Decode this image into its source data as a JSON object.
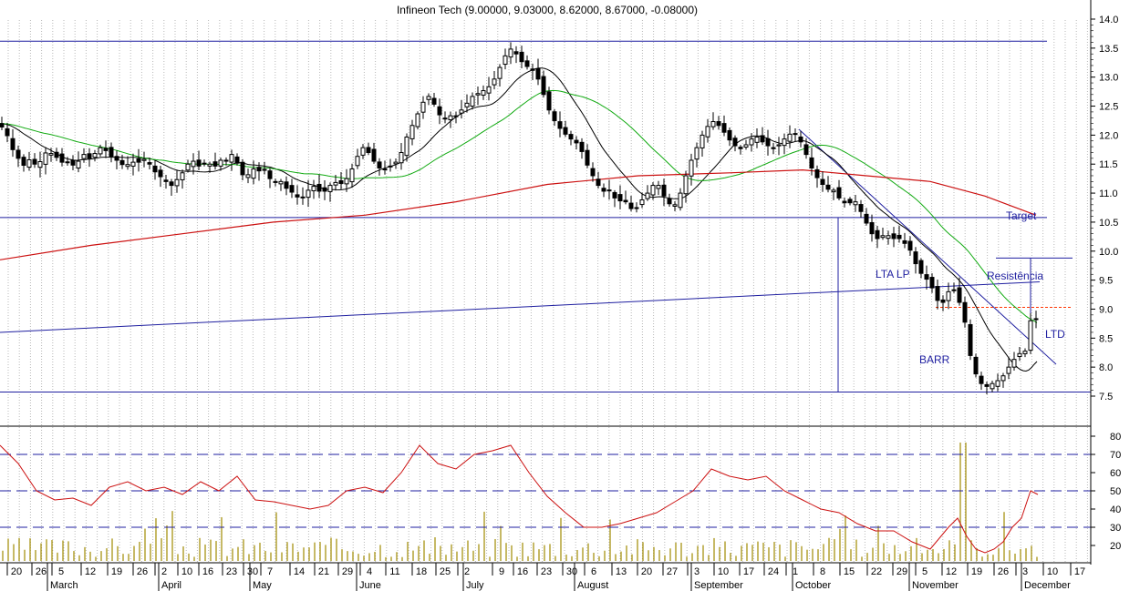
{
  "title": "Infineon Tech (9.00000, 9.03000, 8.62000, 8.67000, -0.08000)",
  "colors": {
    "candle": "#000000",
    "ma_short": "#000000",
    "ma_mid": "#11aa11",
    "ma_long": "#cc1111",
    "lines": "#1f1fa0",
    "resistance": "#ff3300",
    "rsi": "#cc1111",
    "volume": "#a08a00",
    "grid": "#b8b8b8"
  },
  "annotations": {
    "target": "Target",
    "resistencia": "Resistência",
    "lta_lp": "LTA LP",
    "ltd": "LTD",
    "barr": "BARR"
  },
  "x_axis": {
    "day_ticks": [
      "20",
      "26",
      "5",
      "12",
      "19",
      "26",
      "2",
      "10",
      "16",
      "23",
      "30",
      "7",
      "14",
      "21",
      "29",
      "4",
      "11",
      "18",
      "25",
      "2",
      "9",
      "16",
      "23",
      "30",
      "6",
      "13",
      "20",
      "27",
      "3",
      "10",
      "17",
      "24",
      "1",
      "8",
      "15",
      "22",
      "29",
      "5",
      "12",
      "19",
      "26",
      "3",
      "10",
      "17"
    ],
    "months": [
      "March",
      "April",
      "May",
      "June",
      "July",
      "August",
      "September",
      "October",
      "November",
      "December"
    ]
  },
  "chart_data": [
    {
      "type": "candlestick",
      "title": "Infineon Tech (9.00000, 9.03000, 8.62000, 8.67000, -0.08000)",
      "last_bar": {
        "open": 9.0,
        "high": 9.03,
        "low": 8.62,
        "close": 8.67,
        "change": -0.08
      },
      "ylim": [
        7.3,
        14.3
      ],
      "yticks": [
        "14.0",
        "13.5",
        "13.0",
        "12.5",
        "12.0",
        "11.5",
        "11.0",
        "10.5",
        "10.0",
        "9.5",
        "9.0",
        "8.5",
        "8.0",
        "7.5"
      ],
      "grid": "vertical dotted",
      "close_path": [
        [
          0,
          12.2
        ],
        [
          5,
          12.05
        ],
        [
          10,
          11.95
        ],
        [
          15,
          11.7
        ],
        [
          20,
          11.6
        ],
        [
          25,
          11.45
        ],
        [
          30,
          11.6
        ],
        [
          38,
          11.5
        ],
        [
          45,
          11.55
        ],
        [
          52,
          11.75
        ],
        [
          58,
          11.65
        ],
        [
          64,
          11.6
        ],
        [
          70,
          11.5
        ],
        [
          76,
          11.55
        ],
        [
          82,
          11.45
        ],
        [
          88,
          11.6
        ],
        [
          94,
          11.7
        ],
        [
          100,
          11.55
        ],
        [
          106,
          11.75
        ],
        [
          112,
          11.8
        ],
        [
          118,
          11.7
        ],
        [
          124,
          11.6
        ],
        [
          130,
          11.55
        ],
        [
          137,
          11.45
        ],
        [
          144,
          11.55
        ],
        [
          150,
          11.5
        ],
        [
          156,
          11.6
        ],
        [
          162,
          11.55
        ],
        [
          168,
          11.4
        ],
        [
          174,
          11.3
        ],
        [
          180,
          11.25
        ],
        [
          186,
          11.1
        ],
        [
          192,
          11.2
        ],
        [
          198,
          11.3
        ],
        [
          204,
          11.45
        ],
        [
          210,
          11.6
        ],
        [
          216,
          11.45
        ],
        [
          222,
          11.5
        ],
        [
          228,
          11.55
        ],
        [
          234,
          11.4
        ],
        [
          240,
          11.6
        ],
        [
          246,
          11.5
        ],
        [
          252,
          11.7
        ],
        [
          258,
          11.6
        ],
        [
          264,
          11.35
        ],
        [
          270,
          11.25
        ],
        [
          276,
          11.45
        ],
        [
          282,
          11.35
        ],
        [
          288,
          11.45
        ],
        [
          294,
          11.3
        ],
        [
          300,
          11.15
        ],
        [
          306,
          11.25
        ],
        [
          312,
          11.1
        ],
        [
          318,
          11.05
        ],
        [
          324,
          10.95
        ],
        [
          330,
          10.9
        ],
        [
          336,
          11.0
        ],
        [
          342,
          11.15
        ],
        [
          348,
          11.05
        ],
        [
          354,
          11.0
        ],
        [
          360,
          11.1
        ],
        [
          366,
          11.2
        ],
        [
          372,
          11.15
        ],
        [
          378,
          11.2
        ],
        [
          384,
          11.35
        ],
        [
          390,
          11.55
        ],
        [
          396,
          11.8
        ],
        [
          402,
          11.75
        ],
        [
          408,
          11.6
        ],
        [
          414,
          11.45
        ],
        [
          420,
          11.4
        ],
        [
          426,
          11.45
        ],
        [
          432,
          11.5
        ],
        [
          438,
          11.6
        ],
        [
          444,
          11.9
        ],
        [
          450,
          12.1
        ],
        [
          456,
          12.3
        ],
        [
          462,
          12.5
        ],
        [
          468,
          12.7
        ],
        [
          474,
          12.6
        ],
        [
          480,
          12.4
        ],
        [
          486,
          12.25
        ],
        [
          492,
          12.35
        ],
        [
          498,
          12.3
        ],
        [
          504,
          12.4
        ],
        [
          510,
          12.5
        ],
        [
          516,
          12.65
        ],
        [
          522,
          12.7
        ],
        [
          528,
          12.75
        ],
        [
          534,
          12.8
        ],
        [
          540,
          12.9
        ],
        [
          546,
          13.1
        ],
        [
          552,
          13.3
        ],
        [
          558,
          13.5
        ],
        [
          564,
          13.45
        ],
        [
          570,
          13.3
        ],
        [
          576,
          13.2
        ],
        [
          582,
          13.15
        ],
        [
          588,
          13.05
        ],
        [
          594,
          12.8
        ],
        [
          600,
          12.5
        ],
        [
          606,
          12.3
        ],
        [
          612,
          12.15
        ],
        [
          618,
          12.05
        ],
        [
          624,
          11.95
        ],
        [
          630,
          11.9
        ],
        [
          636,
          11.8
        ],
        [
          642,
          11.55
        ],
        [
          648,
          11.35
        ],
        [
          654,
          11.2
        ],
        [
          660,
          11.0
        ],
        [
          666,
          11.1
        ],
        [
          672,
          10.95
        ],
        [
          678,
          10.85
        ],
        [
          684,
          10.9
        ],
        [
          690,
          10.75
        ],
        [
          696,
          10.7
        ],
        [
          702,
          10.85
        ],
        [
          708,
          10.95
        ],
        [
          714,
          11.1
        ],
        [
          720,
          11.2
        ],
        [
          726,
          11.0
        ],
        [
          732,
          10.85
        ],
        [
          738,
          10.75
        ],
        [
          744,
          10.9
        ],
        [
          750,
          11.2
        ],
        [
          756,
          11.5
        ],
        [
          762,
          11.7
        ],
        [
          768,
          11.95
        ],
        [
          774,
          12.1
        ],
        [
          780,
          12.25
        ],
        [
          786,
          12.2
        ],
        [
          792,
          12.1
        ],
        [
          798,
          11.95
        ],
        [
          804,
          11.85
        ],
        [
          810,
          11.75
        ],
        [
          816,
          11.8
        ],
        [
          822,
          11.9
        ],
        [
          828,
          12.0
        ],
        [
          834,
          11.9
        ],
        [
          840,
          11.85
        ],
        [
          846,
          11.75
        ],
        [
          852,
          11.8
        ],
        [
          858,
          11.9
        ],
        [
          864,
          12.0
        ],
        [
          870,
          12.05
        ],
        [
          876,
          11.95
        ],
        [
          882,
          11.75
        ],
        [
          888,
          11.5
        ],
        [
          894,
          11.3
        ],
        [
          900,
          11.2
        ],
        [
          906,
          11.05
        ],
        [
          912,
          11.1
        ],
        [
          918,
          10.95
        ],
        [
          924,
          10.85
        ],
        [
          930,
          10.8
        ],
        [
          936,
          10.9
        ],
        [
          942,
          10.75
        ],
        [
          948,
          10.55
        ],
        [
          954,
          10.35
        ],
        [
          960,
          10.2
        ],
        [
          966,
          10.25
        ],
        [
          972,
          10.3
        ],
        [
          978,
          10.2
        ],
        [
          984,
          10.25
        ],
        [
          990,
          10.15
        ],
        [
          996,
          10.1
        ],
        [
          1002,
          9.85
        ],
        [
          1008,
          9.65
        ],
        [
          1014,
          9.55
        ],
        [
          1020,
          9.45
        ],
        [
          1026,
          9.2
        ],
        [
          1032,
          9.05
        ],
        [
          1038,
          9.25
        ],
        [
          1044,
          9.4
        ],
        [
          1050,
          9.2
        ],
        [
          1056,
          8.95
        ],
        [
          1060,
          8.6
        ],
        [
          1064,
          8.2
        ],
        [
          1068,
          7.95
        ],
        [
          1074,
          7.75
        ],
        [
          1080,
          7.65
        ],
        [
          1086,
          7.7
        ],
        [
          1092,
          7.75
        ],
        [
          1098,
          7.8
        ],
        [
          1104,
          7.95
        ],
        [
          1110,
          8.1
        ],
        [
          1116,
          8.2
        ],
        [
          1122,
          8.3
        ],
        [
          1126,
          8.25
        ],
        [
          1130,
          8.8
        ],
        [
          1134,
          9.0
        ],
        [
          1138,
          8.67
        ]
      ]
    },
    {
      "type": "line",
      "series": [
        {
          "name": "",
          "values": [
            [
              0,
              75
            ],
            [
              20,
              65
            ],
            [
              40,
              50
            ],
            [
              60,
              45
            ],
            [
              80,
              46
            ],
            [
              100,
              42
            ],
            [
              120,
              52
            ],
            [
              140,
              55
            ],
            [
              160,
              50
            ],
            [
              180,
              52
            ],
            [
              200,
              48
            ],
            [
              220,
              55
            ],
            [
              240,
              50
            ],
            [
              260,
              58
            ],
            [
              280,
              45
            ],
            [
              300,
              44
            ],
            [
              320,
              42
            ],
            [
              340,
              40
            ],
            [
              360,
              42
            ],
            [
              380,
              50
            ],
            [
              400,
              52
            ],
            [
              420,
              49
            ],
            [
              440,
              60
            ],
            [
              460,
              75
            ],
            [
              480,
              65
            ],
            [
              500,
              62
            ],
            [
              520,
              70
            ],
            [
              540,
              72
            ],
            [
              560,
              75
            ],
            [
              580,
              60
            ],
            [
              600,
              47
            ],
            [
              620,
              38
            ],
            [
              640,
              30
            ],
            [
              660,
              30
            ],
            [
              680,
              32
            ],
            [
              700,
              35
            ],
            [
              720,
              38
            ],
            [
              740,
              44
            ],
            [
              760,
              50
            ],
            [
              780,
              62
            ],
            [
              800,
              58
            ],
            [
              820,
              56
            ],
            [
              840,
              58
            ],
            [
              860,
              50
            ],
            [
              880,
              45
            ],
            [
              900,
              40
            ],
            [
              920,
              38
            ],
            [
              940,
              32
            ],
            [
              960,
              28
            ],
            [
              980,
              28
            ],
            [
              1000,
              22
            ],
            [
              1020,
              18
            ],
            [
              1040,
              30
            ],
            [
              1050,
              35
            ],
            [
              1060,
              25
            ],
            [
              1070,
              18
            ],
            [
              1080,
              16
            ],
            [
              1090,
              18
            ],
            [
              1100,
              22
            ],
            [
              1110,
              30
            ],
            [
              1120,
              35
            ],
            [
              1130,
              50
            ],
            [
              1138,
              48
            ]
          ]
        }
      ],
      "ylim": [
        10,
        85
      ],
      "yticks": [
        "80",
        "70",
        "60",
        "50",
        "40",
        "30",
        "20"
      ],
      "dashed_levels": [
        70,
        50,
        30
      ]
    }
  ]
}
